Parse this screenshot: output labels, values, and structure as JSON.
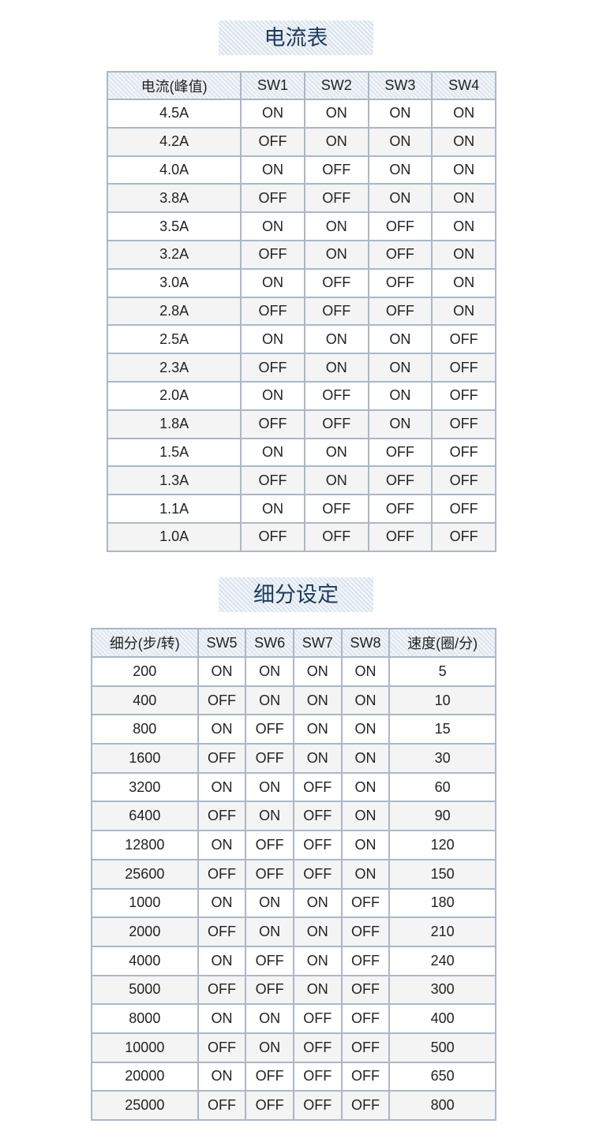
{
  "current_table": {
    "title": "电流表",
    "headers": [
      "电流(峰值)",
      "SW1",
      "SW2",
      "SW3",
      "SW4"
    ],
    "rows": [
      [
        "4.5A",
        "ON",
        "ON",
        "ON",
        "ON"
      ],
      [
        "4.2A",
        "OFF",
        "ON",
        "ON",
        "ON"
      ],
      [
        "4.0A",
        "ON",
        "OFF",
        "ON",
        "ON"
      ],
      [
        "3.8A",
        "OFF",
        "OFF",
        "ON",
        "ON"
      ],
      [
        "3.5A",
        "ON",
        "ON",
        "OFF",
        "ON"
      ],
      [
        "3.2A",
        "OFF",
        "ON",
        "OFF",
        "ON"
      ],
      [
        "3.0A",
        "ON",
        "OFF",
        "OFF",
        "ON"
      ],
      [
        "2.8A",
        "OFF",
        "OFF",
        "OFF",
        "ON"
      ],
      [
        "2.5A",
        "ON",
        "ON",
        "ON",
        "OFF"
      ],
      [
        "2.3A",
        "OFF",
        "ON",
        "ON",
        "OFF"
      ],
      [
        "2.0A",
        "ON",
        "OFF",
        "ON",
        "OFF"
      ],
      [
        "1.8A",
        "OFF",
        "OFF",
        "ON",
        "OFF"
      ],
      [
        "1.5A",
        "ON",
        "ON",
        "OFF",
        "OFF"
      ],
      [
        "1.3A",
        "OFF",
        "ON",
        "OFF",
        "OFF"
      ],
      [
        "1.1A",
        "ON",
        "OFF",
        "OFF",
        "OFF"
      ],
      [
        "1.0A",
        "OFF",
        "OFF",
        "OFF",
        "OFF"
      ]
    ]
  },
  "microstep_table": {
    "title": "细分设定",
    "headers": [
      "细分(步/转)",
      "SW5",
      "SW6",
      "SW7",
      "SW8",
      "速度(圈/分)"
    ],
    "rows": [
      [
        "200",
        "ON",
        "ON",
        "ON",
        "ON",
        "5"
      ],
      [
        "400",
        "OFF",
        "ON",
        "ON",
        "ON",
        "10"
      ],
      [
        "800",
        "ON",
        "OFF",
        "ON",
        "ON",
        "15"
      ],
      [
        "1600",
        "OFF",
        "OFF",
        "ON",
        "ON",
        "30"
      ],
      [
        "3200",
        "ON",
        "ON",
        "OFF",
        "ON",
        "60"
      ],
      [
        "6400",
        "OFF",
        "ON",
        "OFF",
        "ON",
        "90"
      ],
      [
        "12800",
        "ON",
        "OFF",
        "OFF",
        "ON",
        "120"
      ],
      [
        "25600",
        "OFF",
        "OFF",
        "OFF",
        "ON",
        "150"
      ],
      [
        "1000",
        "ON",
        "ON",
        "ON",
        "OFF",
        "180"
      ],
      [
        "2000",
        "OFF",
        "ON",
        "ON",
        "OFF",
        "210"
      ],
      [
        "4000",
        "ON",
        "OFF",
        "ON",
        "OFF",
        "240"
      ],
      [
        "5000",
        "OFF",
        "OFF",
        "ON",
        "OFF",
        "300"
      ],
      [
        "8000",
        "ON",
        "ON",
        "OFF",
        "OFF",
        "400"
      ],
      [
        "10000",
        "OFF",
        "ON",
        "OFF",
        "OFF",
        "500"
      ],
      [
        "20000",
        "ON",
        "OFF",
        "OFF",
        "OFF",
        "650"
      ],
      [
        "25000",
        "OFF",
        "OFF",
        "OFF",
        "OFF",
        "800"
      ]
    ]
  },
  "colors": {
    "title": "#1b3a5e",
    "border": "#a9b8c9",
    "header_bg": "#dfe6ee",
    "alt_row": "#f4f4f4"
  }
}
